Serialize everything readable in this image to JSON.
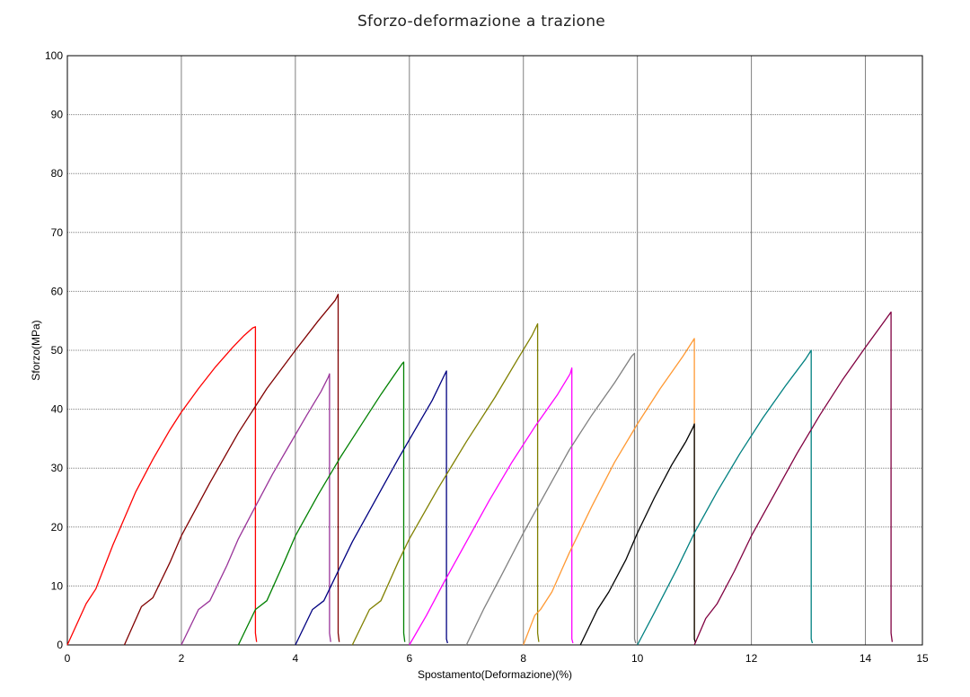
{
  "chart_data": {
    "type": "line",
    "title": "Sforzo-deformazione a trazione",
    "xlabel": "Spostamento(Deformazione)(%)",
    "ylabel": "Sforzo(MPa)",
    "xlim": [
      0,
      15
    ],
    "ylim": [
      0,
      100
    ],
    "xticks": [
      0,
      2,
      4,
      6,
      8,
      10,
      12,
      14,
      15
    ],
    "yticks": [
      0,
      10,
      20,
      30,
      40,
      50,
      60,
      70,
      80,
      90,
      100
    ],
    "grid": true,
    "series": [
      {
        "color": "#ff0000",
        "start": 0.0,
        "end": 3.3,
        "peak": 54.0,
        "x": [
          0.0,
          0.33,
          0.5,
          0.8,
          1.0,
          1.2,
          1.5,
          1.8,
          2.0,
          2.3,
          2.6,
          2.9,
          3.1,
          3.25,
          3.3,
          3.3,
          3.32
        ],
        "y": [
          0,
          7,
          9.5,
          17,
          21.5,
          26,
          31.5,
          36.5,
          39.5,
          43.5,
          47.2,
          50.5,
          52.5,
          53.8,
          54.0,
          2,
          0.5
        ]
      },
      {
        "color": "#800000",
        "start": 1.0,
        "end": 4.75,
        "peak": 59.5,
        "x": [
          1.0,
          1.3,
          1.5,
          1.8,
          2.0,
          2.5,
          3.0,
          3.5,
          4.0,
          4.4,
          4.7,
          4.75,
          4.75,
          4.77
        ],
        "y": [
          0,
          6.5,
          8,
          14,
          18.5,
          27.5,
          36,
          43.5,
          50,
          55,
          58.5,
          59.5,
          2,
          0.5
        ]
      },
      {
        "color": "#993399",
        "start": 2.0,
        "end": 4.6,
        "peak": 46.0,
        "x": [
          2.0,
          2.3,
          2.5,
          2.8,
          3.0,
          3.3,
          3.6,
          3.9,
          4.2,
          4.45,
          4.58,
          4.6,
          4.6,
          4.62
        ],
        "y": [
          0,
          6,
          7.5,
          13.5,
          18,
          23.5,
          29,
          34,
          39,
          43,
          45.5,
          46.0,
          2,
          0.5
        ]
      },
      {
        "color": "#008000",
        "start": 3.0,
        "end": 5.9,
        "peak": 48.0,
        "x": [
          3.0,
          3.3,
          3.5,
          3.8,
          4.0,
          4.4,
          4.8,
          5.2,
          5.5,
          5.75,
          5.88,
          5.9,
          5.9,
          5.92
        ],
        "y": [
          0,
          6,
          7.5,
          14,
          18.5,
          25.5,
          32,
          38,
          42.5,
          46,
          47.8,
          48.0,
          2,
          0.5
        ]
      },
      {
        "color": "#000080",
        "start": 4.0,
        "end": 6.65,
        "peak": 46.5,
        "x": [
          4.0,
          4.3,
          4.5,
          4.8,
          5.0,
          5.4,
          5.8,
          6.1,
          6.4,
          6.6,
          6.65,
          6.65,
          6.67
        ],
        "y": [
          0,
          6,
          7.5,
          13.5,
          17.5,
          24.5,
          31.5,
          36.5,
          41.5,
          45.5,
          46.5,
          1,
          0.3
        ]
      },
      {
        "color": "#808000",
        "start": 5.0,
        "end": 8.25,
        "peak": 54.5,
        "x": [
          5.0,
          5.3,
          5.5,
          5.8,
          6.0,
          6.5,
          7.0,
          7.5,
          7.9,
          8.15,
          8.25,
          8.25,
          8.27
        ],
        "y": [
          0,
          6,
          7.5,
          14,
          18,
          26.5,
          34.5,
          42,
          48.5,
          52.5,
          54.5,
          2,
          0.5
        ]
      },
      {
        "color": "#ff00ff",
        "start": 6.0,
        "end": 8.85,
        "peak": 47.0,
        "x": [
          6.0,
          6.3,
          6.6,
          7.0,
          7.4,
          7.8,
          8.2,
          8.6,
          8.82,
          8.85,
          8.85,
          8.87
        ],
        "y": [
          0,
          5,
          10.5,
          17.5,
          24.5,
          31,
          37,
          42.5,
          46,
          47.0,
          1,
          0.3
        ]
      },
      {
        "color": "#808080",
        "start": 7.0,
        "end": 9.95,
        "peak": 49.5,
        "x": [
          7.0,
          7.3,
          7.6,
          8.0,
          8.4,
          8.8,
          9.2,
          9.6,
          9.9,
          9.95,
          9.95,
          9.97
        ],
        "y": [
          0,
          6,
          11.5,
          19,
          26,
          33,
          39,
          44.5,
          49,
          49.5,
          1,
          0.3
        ]
      },
      {
        "color": "#ff9933",
        "start": 8.0,
        "end": 11.0,
        "peak": 52.0,
        "x": [
          8.0,
          8.2,
          8.3,
          8.5,
          8.8,
          9.2,
          9.6,
          10.0,
          10.4,
          10.8,
          11.0,
          11.0,
          11.02
        ],
        "y": [
          0,
          5,
          6,
          9,
          15.5,
          23.5,
          31,
          37.5,
          43.5,
          49,
          52.0,
          1,
          0.3
        ]
      },
      {
        "color": "#000000",
        "start": 9.0,
        "end": 11.0,
        "peak": 37.5,
        "x": [
          9.0,
          9.3,
          9.5,
          9.8,
          10.0,
          10.3,
          10.6,
          10.85,
          10.98,
          11.0,
          11.0,
          11.02
        ],
        "y": [
          0,
          6,
          9,
          14.5,
          19,
          25,
          30.5,
          34.5,
          37,
          37.5,
          1,
          0.3
        ]
      },
      {
        "color": "#008080",
        "start": 10.0,
        "end": 13.05,
        "peak": 50.0,
        "x": [
          10.0,
          10.3,
          10.7,
          11.0,
          11.4,
          11.8,
          12.2,
          12.6,
          12.95,
          13.05,
          13.05,
          13.07
        ],
        "y": [
          0,
          5.5,
          13,
          19,
          26,
          32.5,
          38.5,
          44,
          48.5,
          50.0,
          1,
          0.3
        ]
      },
      {
        "color": "#800040",
        "start": 11.0,
        "end": 14.45,
        "peak": 56.5,
        "x": [
          11.0,
          11.2,
          11.4,
          11.7,
          12.0,
          12.4,
          12.8,
          13.2,
          13.6,
          14.0,
          14.3,
          14.45,
          14.45,
          14.47
        ],
        "y": [
          0,
          4.5,
          7,
          12.5,
          18.5,
          25.5,
          32.5,
          39,
          45,
          50.5,
          54.5,
          56.5,
          2,
          0.5
        ]
      }
    ]
  }
}
